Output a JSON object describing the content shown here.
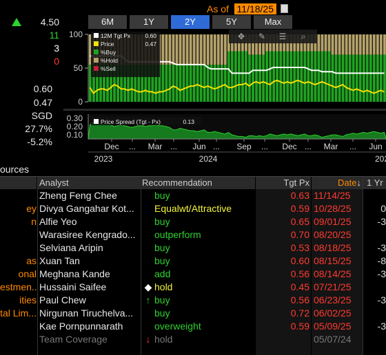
{
  "summary": {
    "top_value": "4.50",
    "buy_count": "11",
    "hold_count": "3",
    "sell_count": "0",
    "tgt_px": "0.60",
    "price": "0.47",
    "currency": "SGD",
    "upside_pct": "27.7%",
    "return_pct": "-5.2%",
    "colors": {
      "buy": "#2fd12f",
      "hold": "#ffffff",
      "sell": "#ff3b30",
      "up_arrow": "#2fd12f"
    }
  },
  "as_of": {
    "label": "As of",
    "date": "11/18/25"
  },
  "periods": [
    {
      "label": "6M",
      "active": false
    },
    {
      "label": "1Y",
      "active": false
    },
    {
      "label": "2Y",
      "active": true
    },
    {
      "label": "5Y",
      "active": false
    },
    {
      "label": "Max",
      "active": false
    }
  ],
  "chart_data": [
    {
      "type": "bar",
      "ylim": [
        0,
        100
      ],
      "yticks": [
        "100",
        "50",
        "0"
      ],
      "legend": [
        {
          "label": "12M Tgt Px",
          "value": "0.60",
          "color": "#ffffff"
        },
        {
          "label": "Price",
          "value": "0.47",
          "color": "#f5e000"
        },
        {
          "label": "%Buy",
          "value": "",
          "color": "#1fa31f"
        },
        {
          "label": "%Hold",
          "value": "",
          "color": "#b5a36a"
        },
        {
          "label": "%Sell",
          "value": "",
          "color": "#c0203a"
        }
      ],
      "series": [
        {
          "name": "%Buy",
          "values": [
            55,
            55,
            55,
            55,
            55,
            55,
            55,
            55,
            55,
            55,
            55,
            55,
            55,
            55,
            55,
            55,
            55,
            55,
            55,
            55,
            55,
            55,
            55,
            55,
            55,
            55,
            55,
            55,
            55,
            55,
            55,
            55,
            55,
            55,
            55,
            55,
            55,
            55,
            55,
            55,
            75,
            75,
            75,
            75,
            75,
            75,
            70,
            70,
            70,
            70,
            70,
            75,
            75,
            75,
            75,
            75,
            75,
            75,
            75,
            75,
            75,
            75,
            75,
            75,
            75,
            75,
            75,
            75,
            75,
            75,
            70,
            70,
            70,
            70,
            70,
            70,
            70,
            70,
            70,
            70,
            70,
            70,
            70,
            70,
            70,
            70
          ]
        },
        {
          "name": "%Hold",
          "values": [
            45,
            45,
            45,
            45,
            45,
            45,
            45,
            45,
            45,
            45,
            45,
            45,
            45,
            45,
            45,
            45,
            45,
            45,
            45,
            45,
            45,
            45,
            45,
            45,
            45,
            45,
            45,
            45,
            45,
            45,
            45,
            45,
            45,
            45,
            45,
            45,
            45,
            45,
            45,
            45,
            25,
            25,
            25,
            25,
            25,
            25,
            30,
            30,
            30,
            30,
            30,
            25,
            25,
            25,
            25,
            25,
            25,
            25,
            25,
            25,
            25,
            25,
            25,
            25,
            25,
            25,
            25,
            25,
            25,
            25,
            30,
            30,
            30,
            30,
            30,
            30,
            30,
            30,
            30,
            30,
            30,
            30,
            30,
            30,
            30,
            30
          ]
        },
        {
          "name": "12M Tgt Px",
          "values": [
            0.72,
            0.72,
            0.72,
            0.72,
            0.72,
            0.72,
            0.72,
            0.72,
            0.72,
            0.72,
            0.7,
            0.68,
            0.68,
            0.68,
            0.68,
            0.68,
            0.68,
            0.68,
            0.68,
            0.68,
            0.68,
            0.68,
            0.68,
            0.68,
            0.67,
            0.66,
            0.66,
            0.66,
            0.66,
            0.66,
            0.66,
            0.66,
            0.66,
            0.66,
            0.64,
            0.63,
            0.63,
            0.63,
            0.63,
            0.63,
            0.63,
            0.6,
            0.6,
            0.6,
            0.6,
            0.6,
            0.6,
            0.62,
            0.62,
            0.62,
            0.62,
            0.62,
            0.63,
            0.64,
            0.64,
            0.64,
            0.64,
            0.64,
            0.64,
            0.64,
            0.64,
            0.64,
            0.64,
            0.63,
            0.62,
            0.62,
            0.62,
            0.61,
            0.61,
            0.61,
            0.61,
            0.6,
            0.6,
            0.6,
            0.6,
            0.6,
            0.6,
            0.6,
            0.6,
            0.6,
            0.6,
            0.6,
            0.6,
            0.6,
            0.6,
            0.6
          ]
        },
        {
          "name": "Price",
          "values": [
            0.5,
            0.46,
            0.48,
            0.49,
            0.49,
            0.48,
            0.5,
            0.52,
            0.51,
            0.49,
            0.49,
            0.48,
            0.49,
            0.48,
            0.47,
            0.47,
            0.48,
            0.47,
            0.47,
            0.46,
            0.47,
            0.47,
            0.48,
            0.49,
            0.51,
            0.5,
            0.48,
            0.49,
            0.5,
            0.51,
            0.51,
            0.52,
            0.51,
            0.5,
            0.51,
            0.5,
            0.49,
            0.5,
            0.51,
            0.52,
            0.5,
            0.5,
            0.51,
            0.52,
            0.52,
            0.53,
            0.51,
            0.53,
            0.54,
            0.53,
            0.54,
            0.53,
            0.52,
            0.54,
            0.55,
            0.54,
            0.53,
            0.54,
            0.53,
            0.54,
            0.55,
            0.54,
            0.53,
            0.54,
            0.53,
            0.52,
            0.53,
            0.54,
            0.53,
            0.52,
            0.51,
            0.5,
            0.51,
            0.52,
            0.5,
            0.49,
            0.48,
            0.49,
            0.48,
            0.47,
            0.48,
            0.47,
            0.46,
            0.47,
            0.48,
            0.47
          ]
        }
      ]
    },
    {
      "type": "area",
      "yticks": [
        "0.30",
        "0.20",
        "0.10"
      ],
      "ylim": [
        0.05,
        0.35
      ],
      "legend": [
        {
          "label": "Price Spread (Tgt - Px)",
          "value": "0.13",
          "color": "#ffffff"
        }
      ],
      "series": [
        {
          "name": "Price Spread (Tgt - Px)",
          "values": [
            0.22,
            0.26,
            0.24,
            0.23,
            0.23,
            0.24,
            0.22,
            0.2,
            0.21,
            0.23,
            0.21,
            0.2,
            0.19,
            0.2,
            0.21,
            0.21,
            0.2,
            0.21,
            0.21,
            0.22,
            0.21,
            0.21,
            0.2,
            0.19,
            0.16,
            0.16,
            0.18,
            0.17,
            0.16,
            0.15,
            0.15,
            0.14,
            0.15,
            0.16,
            0.13,
            0.13,
            0.14,
            0.13,
            0.12,
            0.11,
            0.13,
            0.1,
            0.09,
            0.08,
            0.08,
            0.07,
            0.09,
            0.09,
            0.08,
            0.09,
            0.08,
            0.09,
            0.11,
            0.1,
            0.09,
            0.1,
            0.11,
            0.1,
            0.11,
            0.1,
            0.09,
            0.1,
            0.11,
            0.09,
            0.09,
            0.1,
            0.09,
            0.07,
            0.08,
            0.09,
            0.1,
            0.1,
            0.09,
            0.08,
            0.1,
            0.11,
            0.12,
            0.11,
            0.12,
            0.13,
            0.12,
            0.13,
            0.14,
            0.13,
            0.12,
            0.13
          ]
        }
      ]
    }
  ],
  "x_axis": {
    "months": [
      "Dec",
      "...",
      "Mar",
      "...",
      "Jun",
      "...",
      "Sep",
      "...",
      "Dec",
      "...",
      "Mar",
      "...",
      "Jun"
    ],
    "years": [
      "2023",
      "2024",
      "202"
    ]
  },
  "table": {
    "section_title": "ources",
    "headers": {
      "analyst": "Analyst",
      "recommendation": "Recommendation",
      "tgt_px": "Tgt Px",
      "date": "Date",
      "one_yr": "1 Yr"
    },
    "rows": [
      {
        "source": "",
        "analyst": "Zheng Feng Chee",
        "rec": "buy",
        "rec_color": "green",
        "tgt": "0.63",
        "date": "11/14/25",
        "one_yr": "",
        "mark": "",
        "muted": false
      },
      {
        "source": "ey",
        "analyst": "Divya Gangahar Kot...",
        "rec": "Equalwt/Attractive",
        "rec_color": "yellow",
        "tgt": "0.59",
        "date": "10/28/25",
        "one_yr": "0",
        "mark": "",
        "muted": false
      },
      {
        "source": "n",
        "analyst": "Alfie Yeo",
        "rec": "buy",
        "rec_color": "green",
        "tgt": "0.65",
        "date": "09/01/25",
        "one_yr": "-3",
        "mark": "",
        "muted": false
      },
      {
        "source": "",
        "analyst": "Warasiree Kengrado...",
        "rec": "outperform",
        "rec_color": "green",
        "tgt": "0.70",
        "date": "08/20/25",
        "one_yr": "",
        "mark": "",
        "muted": false
      },
      {
        "source": "",
        "analyst": "Selviana Aripin",
        "rec": "buy",
        "rec_color": "green",
        "tgt": "0.53",
        "date": "08/18/25",
        "one_yr": "-3",
        "mark": "",
        "muted": false
      },
      {
        "source": "as",
        "analyst": "Xuan Tan",
        "rec": "buy",
        "rec_color": "green",
        "tgt": "0.60",
        "date": "08/15/25",
        "one_yr": "-8",
        "mark": "",
        "muted": false
      },
      {
        "source": "onal",
        "analyst": "Meghana Kande",
        "rec": "add",
        "rec_color": "green",
        "tgt": "0.56",
        "date": "08/14/25",
        "one_yr": "-3",
        "mark": "",
        "muted": false
      },
      {
        "source": "estmen...",
        "analyst": "Hussaini Saifee",
        "rec": "hold",
        "rec_color": "yellow",
        "tgt": "0.45",
        "date": "07/21/25",
        "one_yr": "",
        "mark": "diamond",
        "muted": false
      },
      {
        "source": "ities",
        "analyst": "Paul Chew",
        "rec": "buy",
        "rec_color": "green",
        "tgt": "0.56",
        "date": "06/23/25",
        "one_yr": "-3",
        "mark": "up",
        "muted": false
      },
      {
        "source": "tal Lim...",
        "analyst": "Nirgunan Tiruchelva...",
        "rec": "buy",
        "rec_color": "green",
        "tgt": "0.72",
        "date": "06/02/25",
        "one_yr": "",
        "mark": "",
        "muted": false
      },
      {
        "source": "",
        "analyst": "Kae Pornpunnarath",
        "rec": "overweight",
        "rec_color": "green",
        "tgt": "0.59",
        "date": "05/09/25",
        "one_yr": "-3",
        "mark": "",
        "muted": false
      },
      {
        "source": "",
        "analyst": "Team Coverage",
        "rec": "hold",
        "rec_color": "gray",
        "tgt": "",
        "date": "05/07/24",
        "one_yr": "",
        "mark": "down",
        "muted": true
      }
    ]
  }
}
